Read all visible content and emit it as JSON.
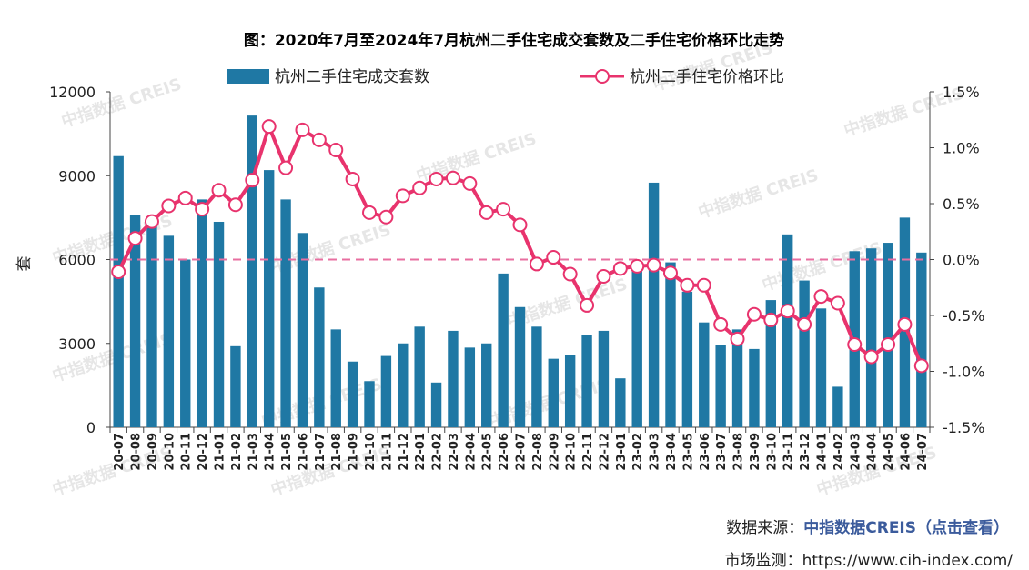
{
  "chart_data": {
    "type": "bar+line",
    "title": "图：2020年7月至2024年7月杭州二手住宅成交套数及二手住宅价格环比走势",
    "ylabel_left": "套",
    "ylim_left": [
      0,
      12000
    ],
    "yticks_left": [
      "0",
      "3000",
      "6000",
      "9000",
      "12000"
    ],
    "ylim_right": [
      -1.5,
      1.5
    ],
    "yticks_right": [
      "-1.5%",
      "-1.0%",
      "-0.5%",
      "0.0%",
      "0.5%",
      "1.0%",
      "1.5%"
    ],
    "categories": [
      "20-07",
      "20-08",
      "20-09",
      "20-10",
      "20-11",
      "20-12",
      "21-01",
      "21-02",
      "21-03",
      "21-04",
      "21-05",
      "21-06",
      "21-07",
      "21-08",
      "21-09",
      "21-10",
      "21-11",
      "21-12",
      "22-01",
      "22-02",
      "22-03",
      "22-04",
      "22-05",
      "22-06",
      "22-07",
      "22-08",
      "22-09",
      "22-10",
      "22-11",
      "22-12",
      "23-01",
      "23-02",
      "23-03",
      "23-04",
      "23-05",
      "23-06",
      "23-07",
      "23-08",
      "23-09",
      "23-10",
      "23-11",
      "23-12",
      "24-01",
      "24-02",
      "24-03",
      "24-04",
      "24-05",
      "24-06",
      "24-07"
    ],
    "series": [
      {
        "name": "杭州二手住宅成交套数",
        "type": "bar",
        "axis": "left",
        "color": "#1f78a4",
        "values": [
          9700,
          7600,
          7200,
          6850,
          6000,
          8150,
          7350,
          2900,
          11150,
          9200,
          8150,
          6950,
          5000,
          3500,
          2350,
          1650,
          2550,
          3000,
          3600,
          1600,
          3450,
          2850,
          3000,
          5500,
          4300,
          3600,
          2450,
          2600,
          3300,
          3450,
          1750,
          5800,
          8750,
          5900,
          4850,
          3750,
          2950,
          3500,
          2800,
          4550,
          6900,
          5250,
          4250,
          1450,
          6300,
          6400,
          6600,
          7500,
          6250
        ]
      },
      {
        "name": "杭州二手住宅价格环比",
        "type": "line",
        "axis": "right",
        "color": "#e8336d",
        "values": [
          -0.11,
          0.19,
          0.34,
          0.48,
          0.55,
          0.45,
          0.62,
          0.49,
          0.71,
          1.19,
          0.82,
          1.16,
          1.07,
          0.98,
          0.72,
          0.42,
          0.38,
          0.57,
          0.64,
          0.72,
          0.73,
          0.68,
          0.42,
          0.45,
          0.31,
          -0.04,
          0.02,
          -0.13,
          -0.41,
          -0.15,
          -0.08,
          -0.06,
          -0.05,
          -0.12,
          -0.23,
          -0.23,
          -0.58,
          -0.71,
          -0.49,
          -0.54,
          -0.46,
          -0.58,
          -0.33,
          -0.39,
          -0.76,
          -0.87,
          -0.76,
          -0.58,
          -0.95
        ]
      }
    ],
    "reference_line": {
      "value": 0.0,
      "axis": "right",
      "style": "dashed",
      "color": "#e86fa0"
    },
    "watermark": "中指数据 CREIS"
  },
  "footer": {
    "source_label": "数据来源：",
    "source_link": "中指数据CREIS（点击查看）",
    "monitor_label": "市场监测：",
    "monitor_url": "https://www.cih-index.com/"
  }
}
